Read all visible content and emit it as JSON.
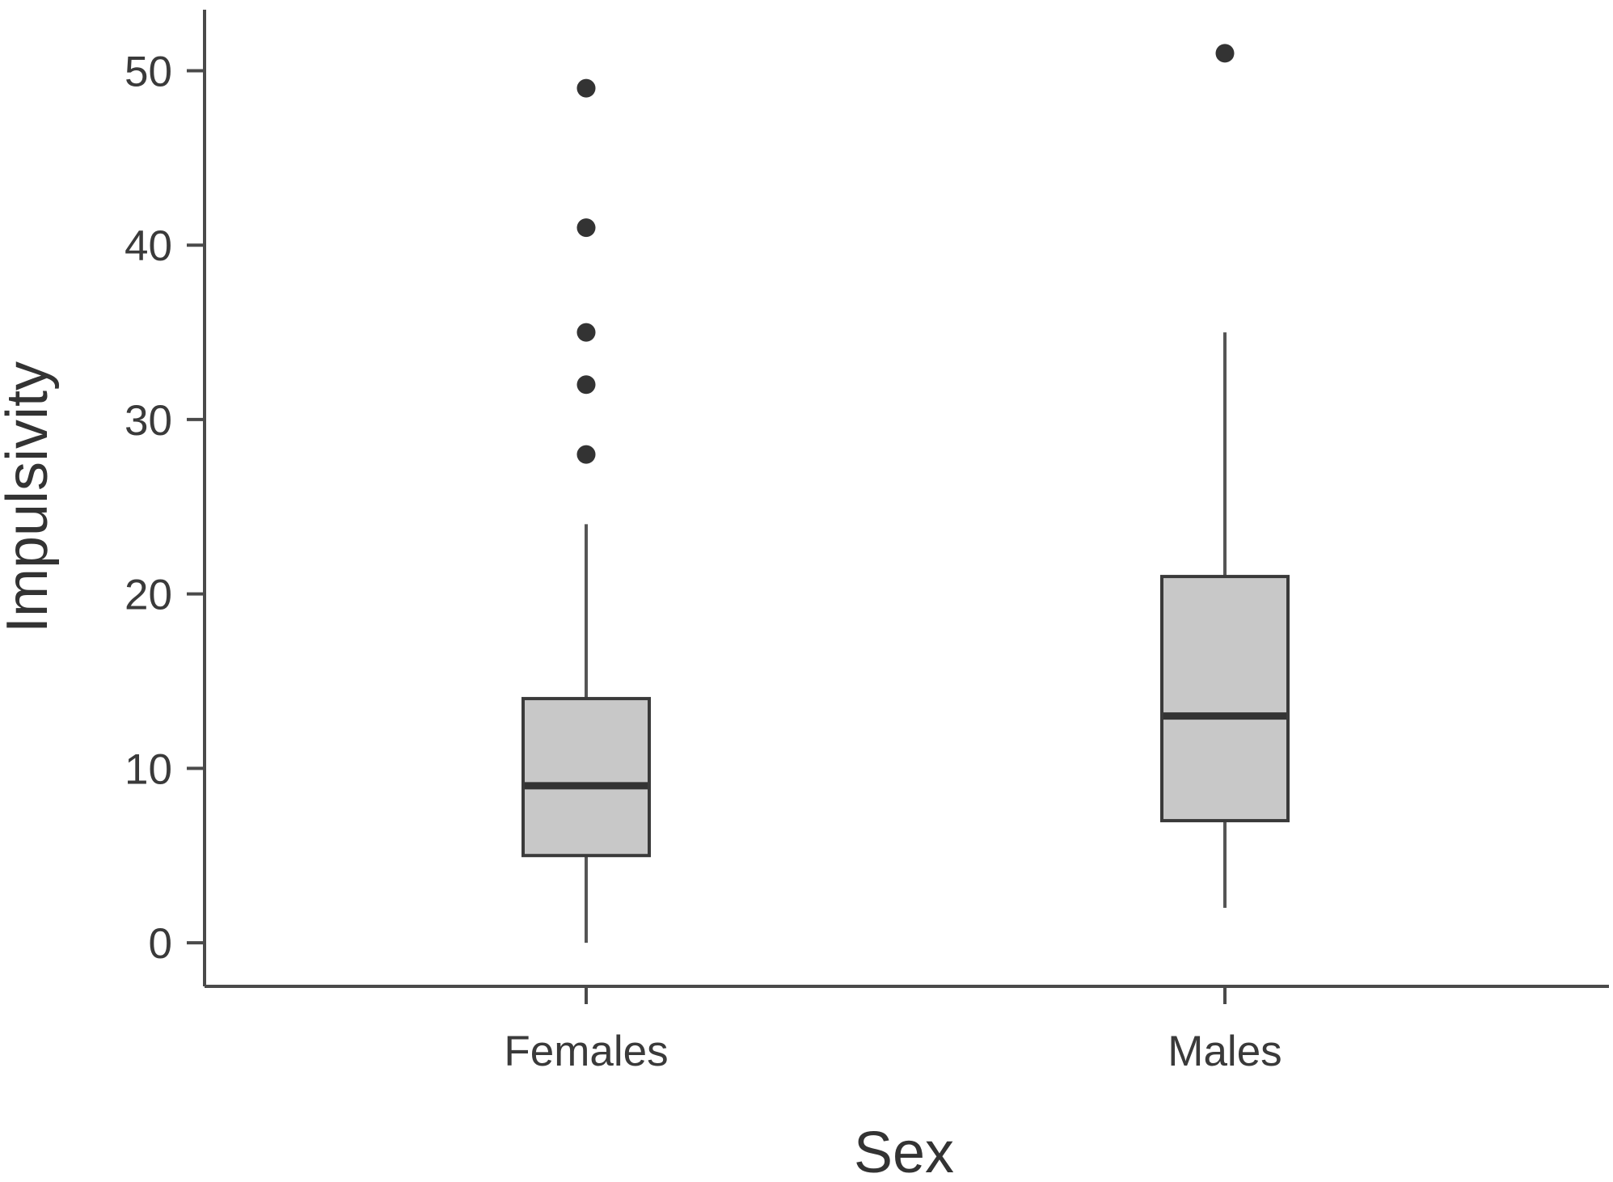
{
  "chart_data": {
    "type": "box",
    "title": "",
    "xlabel": "Sex",
    "ylabel": "Impulsivity",
    "ylim": [
      -2.5,
      53.5
    ],
    "y_ticks": [
      0,
      10,
      20,
      30,
      40,
      50
    ],
    "categories": [
      "Females",
      "Males"
    ],
    "boxes": [
      {
        "category": "Females",
        "whisker_low": 0,
        "q1": 5,
        "median": 9,
        "q3": 14,
        "whisker_high": 24,
        "outliers": [
          28,
          32,
          35,
          41,
          49
        ]
      },
      {
        "category": "Males",
        "whisker_low": 2,
        "q1": 7,
        "median": 13,
        "q3": 21,
        "whisker_high": 35,
        "outliers": [
          51
        ]
      }
    ],
    "grid": false,
    "legend": "none",
    "colors": {
      "box_fill": "#c8c8c8",
      "box_stroke": "#3a3a3a",
      "median": "#333333",
      "outlier": "#333333",
      "axis": "#4a4a4a"
    }
  }
}
